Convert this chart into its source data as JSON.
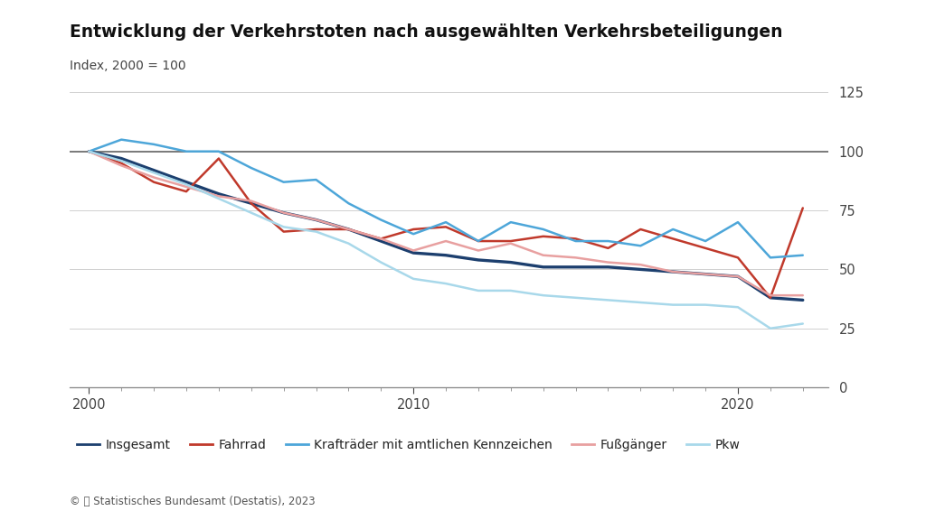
{
  "title": "Entwicklung der Verkehrstoten nach ausgewählten Verkehrsbeteiligungen",
  "subtitle": "Index, 2000 = 100",
  "footer": "© 📊 Statistisches Bundesamt (Destatis), 2023",
  "years": [
    2000,
    2001,
    2002,
    2003,
    2004,
    2005,
    2006,
    2007,
    2008,
    2009,
    2010,
    2011,
    2012,
    2013,
    2014,
    2015,
    2016,
    2017,
    2018,
    2019,
    2020,
    2021,
    2022
  ],
  "series": {
    "Insgesamt": {
      "color": "#1c3f6e",
      "linewidth": 2.4,
      "values": [
        100,
        97,
        92,
        87,
        82,
        78,
        74,
        71,
        67,
        62,
        57,
        56,
        54,
        53,
        51,
        51,
        51,
        50,
        49,
        48,
        47,
        38,
        37
      ]
    },
    "Fahrrad": {
      "color": "#c0392b",
      "linewidth": 1.8,
      "values": [
        100,
        95,
        87,
        83,
        97,
        78,
        66,
        67,
        67,
        63,
        67,
        68,
        62,
        62,
        64,
        63,
        59,
        67,
        63,
        59,
        55,
        38,
        76
      ]
    },
    "Krafträder mit amtlichen Kennzeichen": {
      "color": "#4da6d9",
      "linewidth": 1.8,
      "values": [
        100,
        105,
        103,
        100,
        100,
        93,
        87,
        88,
        78,
        71,
        65,
        70,
        62,
        70,
        67,
        62,
        62,
        60,
        67,
        62,
        70,
        55,
        56
      ]
    },
    "Fußgänger": {
      "color": "#e8a0a0",
      "linewidth": 1.8,
      "values": [
        100,
        94,
        89,
        85,
        81,
        79,
        74,
        71,
        67,
        63,
        58,
        62,
        58,
        61,
        56,
        55,
        53,
        52,
        49,
        48,
        47,
        39,
        39
      ]
    },
    "Pkw": {
      "color": "#a8d8ea",
      "linewidth": 1.8,
      "values": [
        100,
        96,
        91,
        86,
        80,
        74,
        68,
        66,
        61,
        53,
        46,
        44,
        41,
        41,
        39,
        38,
        37,
        36,
        35,
        35,
        34,
        25,
        27
      ]
    }
  },
  "ylim": [
    0,
    130
  ],
  "yticks": [
    0,
    25,
    50,
    75,
    100,
    125
  ],
  "xlim": [
    1999.4,
    2022.8
  ],
  "xticks": [
    2000,
    2010,
    2020
  ],
  "background_color": "#ffffff",
  "plot_bg": "#ffffff",
  "title_fontsize": 13.5,
  "subtitle_fontsize": 10,
  "legend_fontsize": 10,
  "tick_fontsize": 10.5
}
